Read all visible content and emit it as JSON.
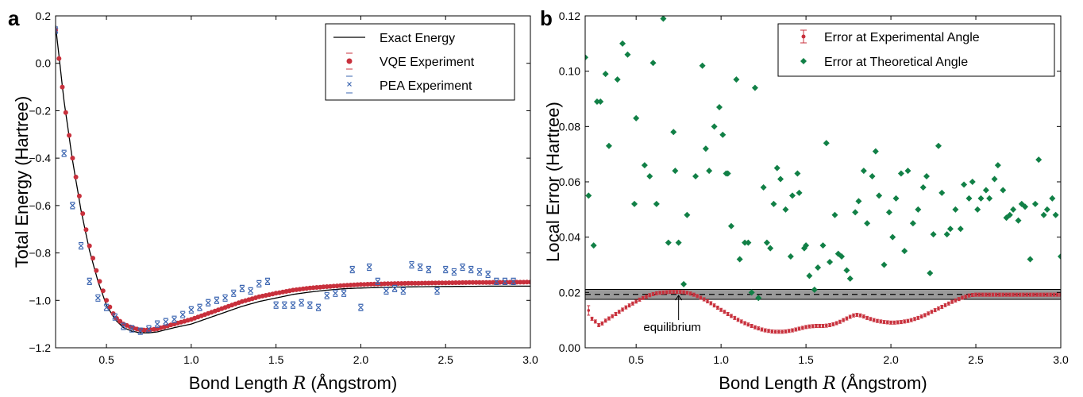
{
  "colors": {
    "vqe": "#c8303c",
    "pea": "#3a64b0",
    "theory": "#118046",
    "exact": "#000000",
    "band": "#9a9a9a"
  },
  "chart_data": [
    {
      "panel": "a",
      "type": "scatter",
      "xlabel_pre": "Bond Length ",
      "xlabel_var": "R",
      "xlabel_post": " (Ångstrom)",
      "ylabel": "Total Energy (Hartree)",
      "xlim": [
        0.2,
        3.0
      ],
      "ylim": [
        -1.2,
        0.2
      ],
      "xticks": [
        0.5,
        1.0,
        1.5,
        2.0,
        2.5,
        3.0
      ],
      "yticks": [
        0.2,
        0.0,
        -0.2,
        -0.4,
        -0.6,
        -0.8,
        -1.0,
        -1.2
      ],
      "xtick_labels": [
        "0.5",
        "1.0",
        "1.5",
        "2.0",
        "2.5",
        "3.0"
      ],
      "ytick_labels": [
        "0.2",
        "0.0",
        "−0.2",
        "−0.4",
        "−0.6",
        "−0.8",
        "−1.0",
        "−1.2"
      ],
      "legend": [
        "Exact Energy",
        "VQE Experiment",
        "PEA Experiment"
      ],
      "legend_position": "top-right",
      "exact_curve": {
        "name": "Exact Energy",
        "x": [
          0.2,
          0.25,
          0.3,
          0.35,
          0.4,
          0.45,
          0.5,
          0.55,
          0.6,
          0.65,
          0.7,
          0.75,
          0.8,
          0.9,
          1.0,
          1.1,
          1.2,
          1.3,
          1.4,
          1.5,
          1.6,
          1.7,
          1.8,
          1.9,
          2.0,
          2.2,
          2.4,
          2.6,
          2.8,
          3.0
        ],
        "y": [
          0.16,
          -0.16,
          -0.41,
          -0.62,
          -0.79,
          -0.92,
          -1.02,
          -1.08,
          -1.115,
          -1.13,
          -1.137,
          -1.137,
          -1.133,
          -1.115,
          -1.1,
          -1.075,
          -1.05,
          -1.025,
          -1.005,
          -0.99,
          -0.975,
          -0.965,
          -0.957,
          -0.951,
          -0.948,
          -0.944,
          -0.942,
          -0.941,
          -0.94,
          -0.94
        ]
      },
      "vqe_experiment": {
        "name": "VQE Experiment",
        "x_start": 0.2,
        "x_step": 0.02,
        "count": 141,
        "curve_x": [
          0.2,
          0.25,
          0.3,
          0.35,
          0.4,
          0.45,
          0.5,
          0.55,
          0.6,
          0.65,
          0.7,
          0.75,
          0.8,
          0.9,
          1.0,
          1.1,
          1.2,
          1.3,
          1.4,
          1.5,
          1.6,
          1.7,
          1.8,
          1.9,
          2.0,
          2.2,
          2.4,
          2.6,
          2.8,
          3.0
        ],
        "curve_y": [
          0.14,
          -0.16,
          -0.4,
          -0.6,
          -0.77,
          -0.9,
          -1.0,
          -1.07,
          -1.1,
          -1.115,
          -1.125,
          -1.125,
          -1.12,
          -1.1,
          -1.08,
          -1.055,
          -1.03,
          -1.005,
          -0.985,
          -0.97,
          -0.957,
          -0.948,
          -0.942,
          -0.937,
          -0.933,
          -0.929,
          -0.927,
          -0.925,
          -0.924,
          -0.923
        ]
      },
      "pea_experiment": {
        "name": "PEA Experiment",
        "x": [
          0.2,
          0.25,
          0.3,
          0.35,
          0.4,
          0.45,
          0.5,
          0.55,
          0.6,
          0.65,
          0.7,
          0.75,
          0.8,
          0.85,
          0.9,
          0.95,
          1.0,
          1.05,
          1.1,
          1.15,
          1.2,
          1.25,
          1.3,
          1.35,
          1.4,
          1.45,
          1.5,
          1.55,
          1.6,
          1.65,
          1.7,
          1.75,
          1.8,
          1.85,
          1.9,
          1.95,
          2.0,
          2.05,
          2.1,
          2.15,
          2.2,
          2.25,
          2.3,
          2.35,
          2.4,
          2.45,
          2.5,
          2.55,
          2.6,
          2.65,
          2.7,
          2.75,
          2.8,
          2.85,
          2.9
        ],
        "y": [
          0.14,
          -0.38,
          -0.6,
          -0.77,
          -0.92,
          -0.99,
          -1.03,
          -1.07,
          -1.11,
          -1.12,
          -1.13,
          -1.12,
          -1.1,
          -1.09,
          -1.08,
          -1.06,
          -1.04,
          -1.03,
          -1.01,
          -1.0,
          -0.99,
          -0.97,
          -0.95,
          -0.96,
          -0.93,
          -0.92,
          -1.02,
          -1.02,
          -1.02,
          -1.01,
          -1.02,
          -1.03,
          -0.98,
          -0.97,
          -0.97,
          -0.87,
          -1.03,
          -0.86,
          -0.92,
          -0.96,
          -0.95,
          -0.96,
          -0.85,
          -0.86,
          -0.87,
          -0.96,
          -0.87,
          -0.88,
          -0.86,
          -0.87,
          -0.88,
          -0.89,
          -0.92,
          -0.92,
          -0.92
        ]
      }
    },
    {
      "panel": "b",
      "type": "scatter",
      "xlabel_pre": "Bond Length ",
      "xlabel_var": "R",
      "xlabel_post": " (Ångstrom)",
      "ylabel": "Local Error (Hartree)",
      "xlim": [
        0.2,
        3.0
      ],
      "ylim": [
        0.0,
        0.12
      ],
      "xticks": [
        0.5,
        1.0,
        1.5,
        2.0,
        2.5,
        3.0
      ],
      "yticks": [
        0.0,
        0.02,
        0.04,
        0.06,
        0.08,
        0.1,
        0.12
      ],
      "xtick_labels": [
        "0.5",
        "1.0",
        "1.5",
        "2.0",
        "2.5",
        "3.0"
      ],
      "ytick_labels": [
        "0.00",
        "0.02",
        "0.04",
        "0.06",
        "0.08",
        "0.10",
        "0.12"
      ],
      "legend": [
        "Error at Experimental Angle",
        "Error at Theoretical Angle"
      ],
      "legend_position": "top-right",
      "threshold_band": {
        "center": 0.0193,
        "low": 0.0175,
        "high": 0.0211
      },
      "annotation": {
        "text": "equilibrium",
        "x": 0.75,
        "y": 0.0195
      },
      "experimental_angle": {
        "name": "Error at Experimental Angle",
        "x": [
          0.22,
          0.24,
          0.26,
          0.28,
          0.3,
          0.32,
          0.34,
          0.36,
          0.38,
          0.4,
          0.42,
          0.44,
          0.46,
          0.48,
          0.5,
          0.52,
          0.54,
          0.56,
          0.58,
          0.6,
          0.62,
          0.64,
          0.66,
          0.68,
          0.7,
          0.72,
          0.74,
          0.76,
          0.78,
          0.8,
          0.82,
          0.84,
          0.86,
          0.88,
          0.9,
          0.92,
          0.94,
          0.96,
          0.98,
          1.0,
          1.02,
          1.04,
          1.06,
          1.08,
          1.1,
          1.12,
          1.14,
          1.16,
          1.18,
          1.2,
          1.22,
          1.24,
          1.26,
          1.28,
          1.3,
          1.32,
          1.34,
          1.36,
          1.38,
          1.4,
          1.42,
          1.44,
          1.46,
          1.48,
          1.5,
          1.52,
          1.54,
          1.56,
          1.58,
          1.6,
          1.62,
          1.64,
          1.66,
          1.68,
          1.7,
          1.72,
          1.74,
          1.76,
          1.78,
          1.8,
          1.82,
          1.84,
          1.86,
          1.88,
          1.9,
          1.92,
          1.94,
          1.96,
          1.98,
          2.0,
          2.02,
          2.04,
          2.06,
          2.08,
          2.1,
          2.12,
          2.14,
          2.16,
          2.18,
          2.2,
          2.22,
          2.24,
          2.26,
          2.28,
          2.3,
          2.32,
          2.34,
          2.36,
          2.38,
          2.4,
          2.42,
          2.44,
          2.46,
          2.48,
          2.5,
          2.52,
          2.54,
          2.56,
          2.58,
          2.6,
          2.62,
          2.64,
          2.66,
          2.68,
          2.7,
          2.72,
          2.74,
          2.76,
          2.78,
          2.8,
          2.82,
          2.84,
          2.86,
          2.88,
          2.9,
          2.92,
          2.94,
          2.96,
          2.98,
          3.0
        ],
        "y": [
          0.0135,
          0.0105,
          0.0095,
          0.0082,
          0.0088,
          0.0098,
          0.0106,
          0.0114,
          0.0122,
          0.013,
          0.0138,
          0.0146,
          0.0153,
          0.016,
          0.0167,
          0.0174,
          0.018,
          0.0185,
          0.019,
          0.0194,
          0.0197,
          0.0199,
          0.02,
          0.0201,
          0.0202,
          0.0202,
          0.0202,
          0.0202,
          0.0201,
          0.0199,
          0.0196,
          0.0192,
          0.0187,
          0.0181,
          0.0175,
          0.0168,
          0.0161,
          0.0153,
          0.0145,
          0.0137,
          0.013,
          0.0122,
          0.0115,
          0.0108,
          0.0101,
          0.0095,
          0.0089,
          0.0084,
          0.0079,
          0.0074,
          0.007,
          0.0066,
          0.0063,
          0.0061,
          0.0059,
          0.0058,
          0.0058,
          0.0058,
          0.0059,
          0.0061,
          0.0063,
          0.0066,
          0.0069,
          0.0072,
          0.0075,
          0.0077,
          0.0078,
          0.0079,
          0.0079,
          0.0079,
          0.008,
          0.0082,
          0.0085,
          0.0089,
          0.0094,
          0.01,
          0.0106,
          0.0112,
          0.0117,
          0.0119,
          0.0117,
          0.0113,
          0.0108,
          0.0104,
          0.01,
          0.0097,
          0.0095,
          0.0093,
          0.0092,
          0.0091,
          0.0091,
          0.0092,
          0.0093,
          0.0095,
          0.0097,
          0.01,
          0.0104,
          0.0108,
          0.0113,
          0.0118,
          0.0124,
          0.013,
          0.0136,
          0.0142,
          0.0148,
          0.0154,
          0.016,
          0.0166,
          0.0171,
          0.0176,
          0.0181,
          0.0185,
          0.0189,
          0.0191,
          0.0192,
          0.0192,
          0.0192,
          0.0192,
          0.0192,
          0.0192,
          0.0192,
          0.0192,
          0.0192,
          0.0192,
          0.0192,
          0.0192,
          0.0192,
          0.0192,
          0.0192,
          0.0192,
          0.0192,
          0.0192,
          0.0192,
          0.0192,
          0.0192,
          0.0192,
          0.0192,
          0.0192,
          0.0192,
          0.0192
        ]
      },
      "theoretical_angle": {
        "name": "Error at Theoretical Angle",
        "x": [
          0.2,
          0.22,
          0.25,
          0.27,
          0.29,
          0.32,
          0.34,
          0.39,
          0.42,
          0.45,
          0.49,
          0.5,
          0.55,
          0.58,
          0.6,
          0.62,
          0.66,
          0.69,
          0.72,
          0.73,
          0.75,
          0.78,
          0.8,
          0.85,
          0.89,
          0.91,
          0.93,
          0.96,
          0.99,
          1.01,
          1.03,
          1.04,
          1.06,
          1.09,
          1.11,
          1.14,
          1.16,
          1.18,
          1.2,
          1.22,
          1.25,
          1.27,
          1.29,
          1.31,
          1.33,
          1.35,
          1.38,
          1.41,
          1.42,
          1.45,
          1.46,
          1.49,
          1.5,
          1.52,
          1.55,
          1.57,
          1.6,
          1.62,
          1.64,
          1.67,
          1.69,
          1.71,
          1.74,
          1.76,
          1.79,
          1.81,
          1.84,
          1.86,
          1.89,
          1.91,
          1.93,
          1.96,
          1.99,
          2.01,
          2.03,
          2.06,
          2.08,
          2.1,
          2.13,
          2.16,
          2.19,
          2.21,
          2.23,
          2.25,
          2.28,
          2.3,
          2.33,
          2.35,
          2.38,
          2.41,
          2.43,
          2.46,
          2.48,
          2.51,
          2.53,
          2.56,
          2.58,
          2.61,
          2.63,
          2.66,
          2.68,
          2.7,
          2.72,
          2.75,
          2.77,
          2.79,
          2.82,
          2.85,
          2.87,
          2.9,
          2.92,
          2.95,
          2.97,
          3.0
        ],
        "y": [
          0.105,
          0.055,
          0.037,
          0.089,
          0.089,
          0.099,
          0.073,
          0.097,
          0.11,
          0.106,
          0.052,
          0.083,
          0.066,
          0.062,
          0.103,
          0.052,
          0.119,
          0.038,
          0.078,
          0.064,
          0.038,
          0.023,
          0.048,
          0.062,
          0.102,
          0.072,
          0.064,
          0.08,
          0.087,
          0.077,
          0.063,
          0.063,
          0.044,
          0.097,
          0.032,
          0.038,
          0.038,
          0.02,
          0.094,
          0.018,
          0.058,
          0.038,
          0.036,
          0.052,
          0.065,
          0.061,
          0.05,
          0.033,
          0.055,
          0.063,
          0.056,
          0.036,
          0.037,
          0.026,
          0.021,
          0.029,
          0.037,
          0.074,
          0.031,
          0.048,
          0.034,
          0.033,
          0.028,
          0.025,
          0.049,
          0.053,
          0.064,
          0.045,
          0.062,
          0.071,
          0.055,
          0.03,
          0.049,
          0.04,
          0.054,
          0.063,
          0.035,
          0.064,
          0.045,
          0.05,
          0.058,
          0.062,
          0.027,
          0.041,
          0.073,
          0.056,
          0.041,
          0.043,
          0.05,
          0.043,
          0.059,
          0.054,
          0.06,
          0.05,
          0.054,
          0.057,
          0.054,
          0.061,
          0.066,
          0.057,
          0.047,
          0.048,
          0.05,
          0.046,
          0.052,
          0.051,
          0.032,
          0.052,
          0.068,
          0.048,
          0.05,
          0.054,
          0.048,
          0.033
        ]
      }
    }
  ]
}
